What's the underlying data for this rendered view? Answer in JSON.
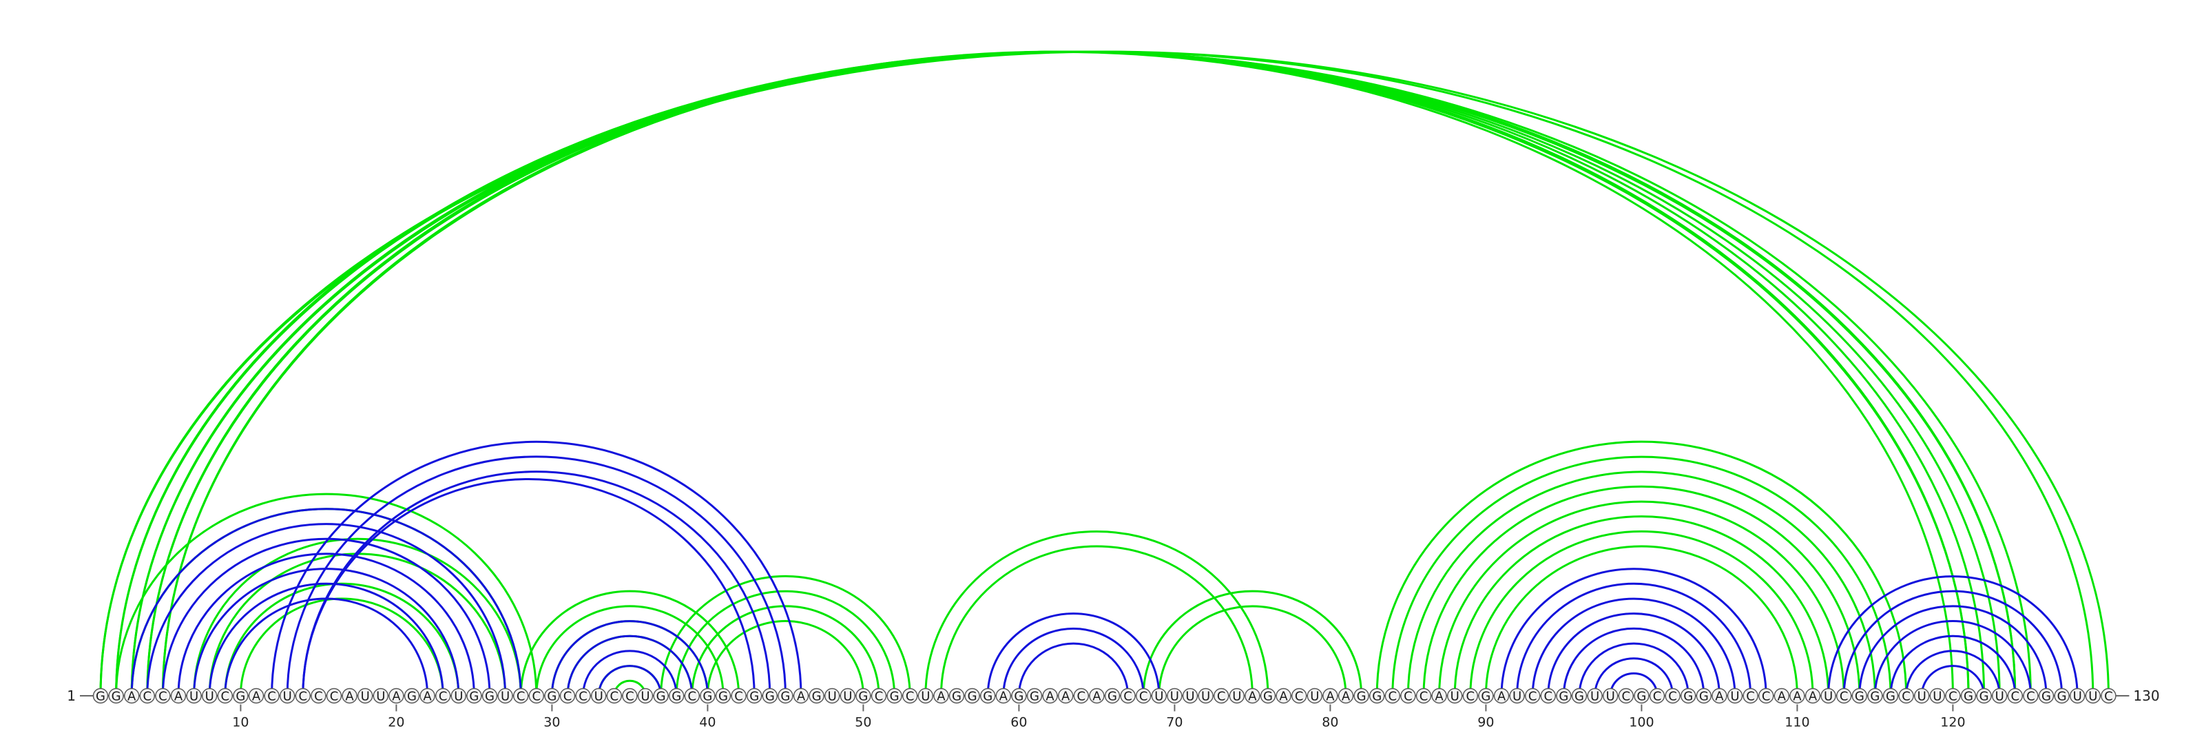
{
  "colors": {
    "green": "#00e400",
    "blue": "#1212dc",
    "axis": "#666666"
  },
  "sequence": "GGACCAUUCGACUCCCAUUAGACUGGUCCGCCUCCUGGCGGCGGGAGUUGCGCUAGGGAGGAACAGCCUUUUCUAGACUAAGGCCCAUCGAUCCGGUUCGCCGGAUCCAAAUCGGGCUUCGGUCCGGUUC",
  "start_label": "1",
  "end_label": "130",
  "ticks": [
    "10",
    "20",
    "30",
    "40",
    "50",
    "60",
    "70",
    "80",
    "90",
    "100",
    "110",
    "120"
  ],
  "arcs": {
    "green": [
      [
        1,
        130
      ],
      [
        1,
        129
      ],
      [
        2,
        125
      ],
      [
        2,
        124
      ],
      [
        3,
        124
      ],
      [
        3,
        123
      ],
      [
        4,
        122
      ],
      [
        4,
        121
      ],
      [
        5,
        121
      ],
      [
        5,
        120
      ],
      [
        2,
        29
      ],
      [
        3,
        28
      ],
      [
        7,
        28
      ],
      [
        8,
        27
      ],
      [
        9,
        24
      ],
      [
        10,
        23
      ],
      [
        28,
        42
      ],
      [
        29,
        41
      ],
      [
        30,
        40
      ],
      [
        31,
        39
      ],
      [
        33,
        37
      ],
      [
        34,
        36
      ],
      [
        37,
        53
      ],
      [
        38,
        52
      ],
      [
        39,
        51
      ],
      [
        40,
        50
      ],
      [
        54,
        76
      ],
      [
        55,
        75
      ],
      [
        68,
        82
      ],
      [
        69,
        81
      ],
      [
        83,
        117
      ],
      [
        84,
        116
      ],
      [
        85,
        115
      ],
      [
        86,
        114
      ],
      [
        87,
        113
      ],
      [
        88,
        112
      ],
      [
        89,
        111
      ],
      [
        90,
        110
      ]
    ],
    "blue": [
      [
        3,
        28
      ],
      [
        4,
        27
      ],
      [
        5,
        26
      ],
      [
        6,
        25
      ],
      [
        7,
        24
      ],
      [
        8,
        23
      ],
      [
        9,
        22
      ],
      [
        12,
        46
      ],
      [
        13,
        45
      ],
      [
        14,
        44
      ],
      [
        14,
        43
      ],
      [
        30,
        40
      ],
      [
        31,
        39
      ],
      [
        32,
        38
      ],
      [
        33,
        37
      ],
      [
        58,
        69
      ],
      [
        59,
        68
      ],
      [
        60,
        67
      ],
      [
        91,
        108
      ],
      [
        92,
        107
      ],
      [
        93,
        106
      ],
      [
        94,
        105
      ],
      [
        95,
        104
      ],
      [
        96,
        103
      ],
      [
        97,
        102
      ],
      [
        98,
        101
      ],
      [
        112,
        128
      ],
      [
        113,
        127
      ],
      [
        114,
        126
      ],
      [
        115,
        125
      ],
      [
        116,
        124
      ],
      [
        117,
        123
      ],
      [
        118,
        122
      ]
    ]
  }
}
